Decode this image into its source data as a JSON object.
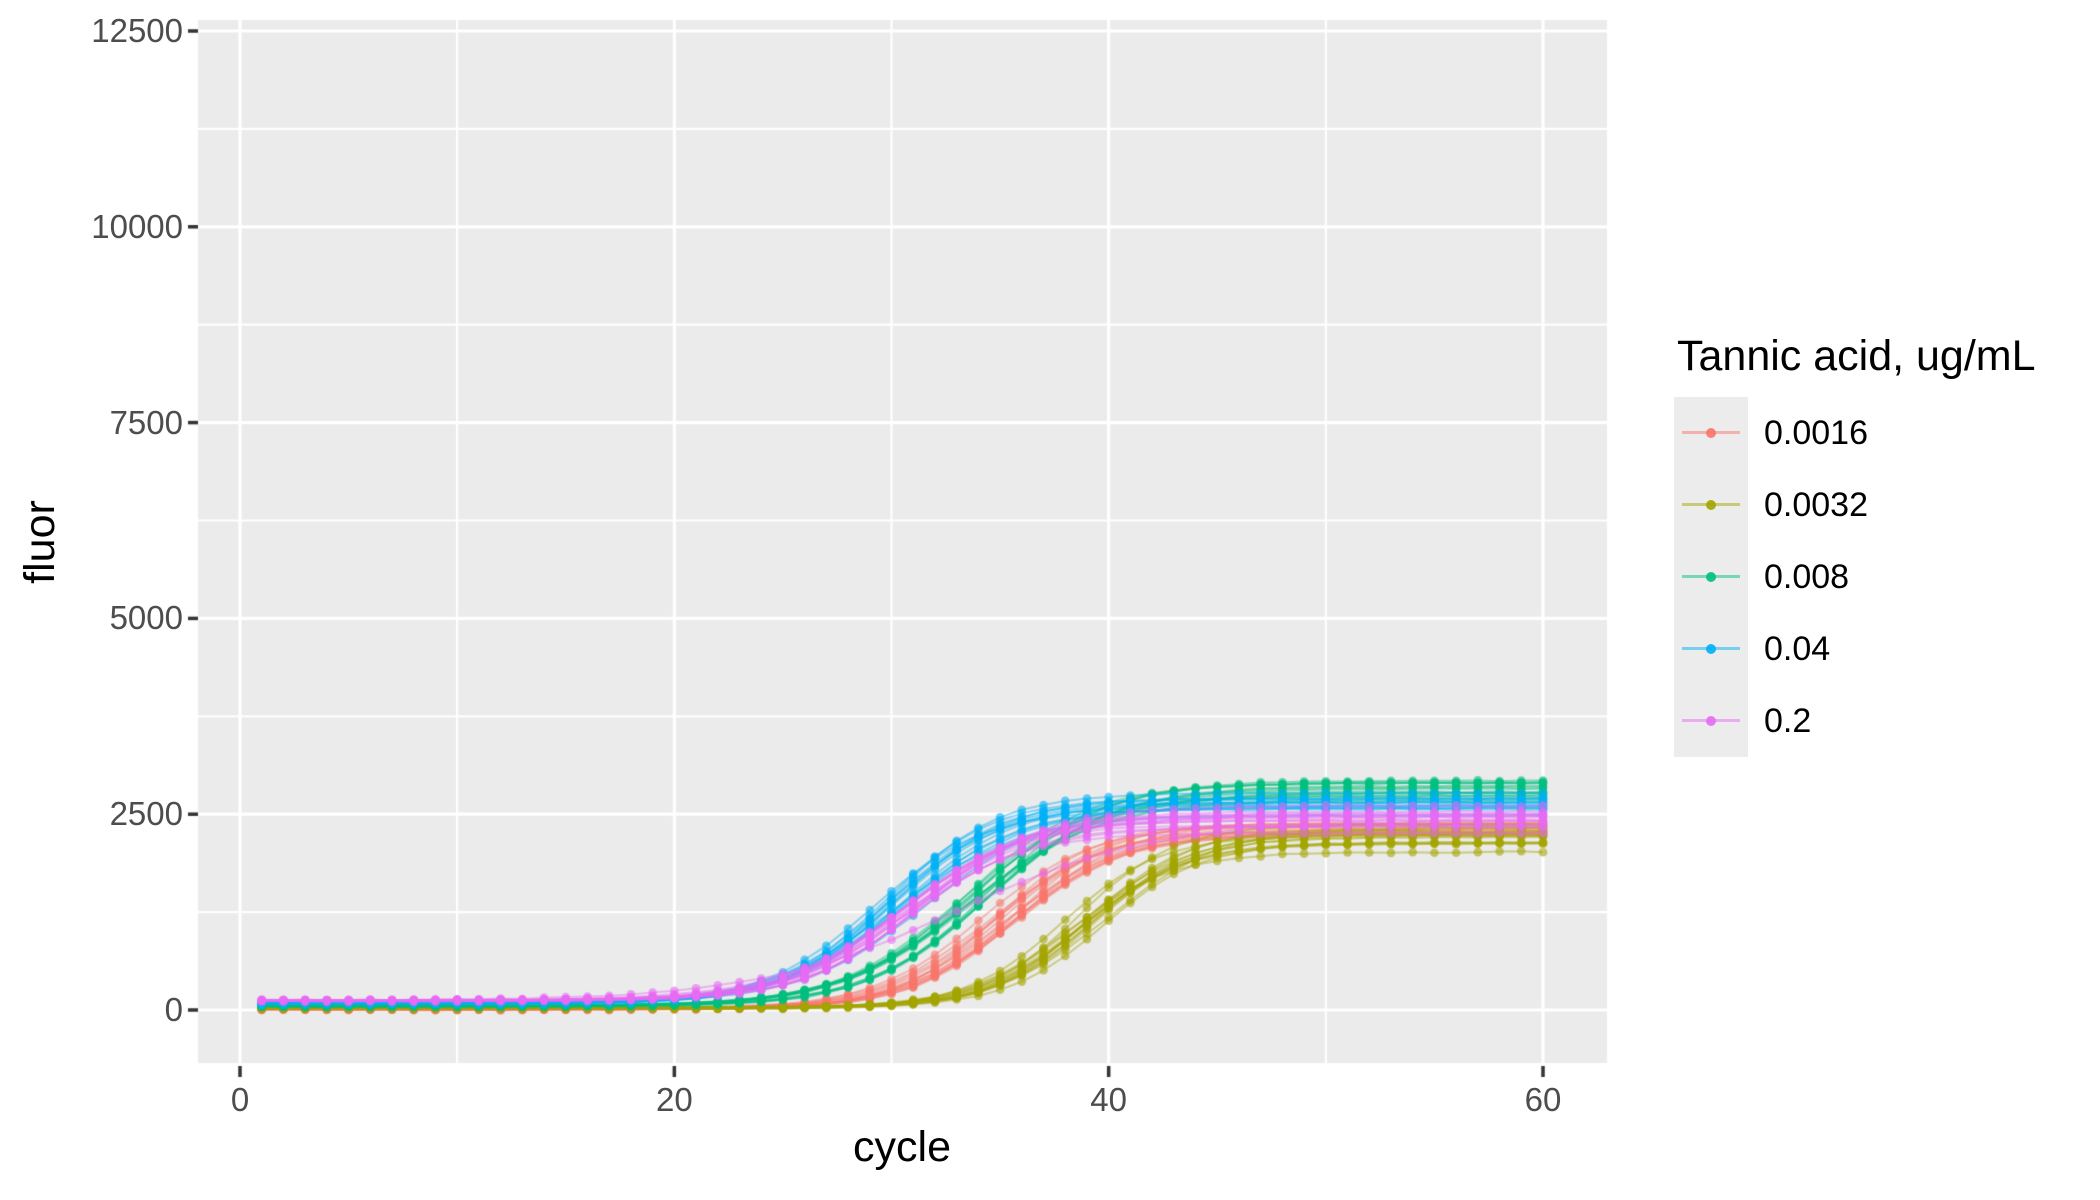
{
  "page": {
    "background": "#FFFFFF"
  },
  "chart_data": {
    "type": "line",
    "title": "",
    "xlabel": "cycle",
    "ylabel": "fluor",
    "legend_title": "Tannic acid, ug/mL",
    "legend_position": "right",
    "grid": true,
    "panel_bg": "#EBEBEB",
    "grid_color": "#FFFFFF",
    "axis_text_color": "#4D4D4D",
    "axis_title_color": "#000000",
    "tick_mark_color": "#333333",
    "xlim": [
      -1.9,
      62.9
    ],
    "ylim": [
      -680,
      12640
    ],
    "x_tick_labels": [
      "0",
      "20",
      "40",
      "60"
    ],
    "x_tick_values": [
      0,
      20,
      40,
      60
    ],
    "x_minor_values": [
      10,
      30,
      50
    ],
    "y_tick_labels": [
      "0",
      "2500",
      "5000",
      "7500",
      "10000",
      "12500"
    ],
    "y_tick_values": [
      0,
      2500,
      5000,
      7500,
      10000,
      12500
    ],
    "y_minor_values": [
      1250,
      3750,
      6250,
      8750,
      11250
    ],
    "cycle_range": [
      1,
      60
    ],
    "sample_cycles": [
      1,
      5,
      10,
      15,
      20,
      25,
      30,
      35,
      40,
      45,
      50,
      55,
      60
    ],
    "series": [
      {
        "label": "0.0016",
        "color": "#F8766D",
        "replicates": 14,
        "sigmoid": {
          "baseline": 15,
          "amplitude": 2300,
          "midpoint": 35.5,
          "rate": 0.4
        },
        "mean_fluor_at_sample_cycles": [
          17,
          15,
          15,
          16,
          20,
          49,
          244,
          1050,
          1989,
          2265,
          2308,
          2314,
          2315
        ]
      },
      {
        "label": "0.0032",
        "color": "#A3A500",
        "replicates": 14,
        "sigmoid": {
          "baseline": 25,
          "amplitude": 2200,
          "midpoint": 39.0,
          "rate": 0.42
        },
        "mean_fluor_at_sample_cycles": [
          25,
          25,
          25,
          25,
          26,
          31,
          74,
          370,
          1353,
          2061,
          2204,
          2222,
          2225
        ]
      },
      {
        "label": "0.008",
        "color": "#00BF7D",
        "replicates": 14,
        "sigmoid": {
          "baseline": 50,
          "amplitude": 2750,
          "midpoint": 34.0,
          "rate": 0.35
        },
        "mean_fluor_at_sample_cycles": [
          50,
          50,
          51,
          54,
          71,
          163,
          594,
          1663,
          2500,
          2743,
          2787,
          2797,
          2799
        ]
      },
      {
        "label": "0.04",
        "color": "#00B0F6",
        "replicates": 14,
        "sigmoid": {
          "baseline": 85,
          "amplitude": 2520,
          "midpoint": 30.2,
          "rate": 0.38
        },
        "mean_fluor_at_sample_cycles": [
          85,
          85,
          86,
          93,
          136,
          392,
          1297,
          2255,
          2545,
          2596,
          2603,
          2605,
          2605
        ]
      },
      {
        "label": "0.2",
        "color": "#E76BF3",
        "replicates": 14,
        "sigmoid": {
          "baseline": 120,
          "amplitude": 2300,
          "midpoint": 31.0,
          "rate": 0.36
        },
        "mean_fluor_at_sample_cycles": [
          120,
          120,
          121,
          127,
          163,
          358,
          1065,
          1979,
          2333,
          2405,
          2417,
          2419,
          2420
        ]
      }
    ],
    "outlier_replicate": {
      "series": "0.2",
      "sigmoid": {
        "baseline": 120,
        "amplitude": 2300,
        "midpoint": 33.0,
        "rate": 0.22
      }
    },
    "replicate_jitter": {
      "amplitude_sd": 75,
      "midpoint_sd": 0.45,
      "baseline_sd": 6,
      "rate_sd_frac": 0.05,
      "point_noise_sd": 4
    }
  }
}
